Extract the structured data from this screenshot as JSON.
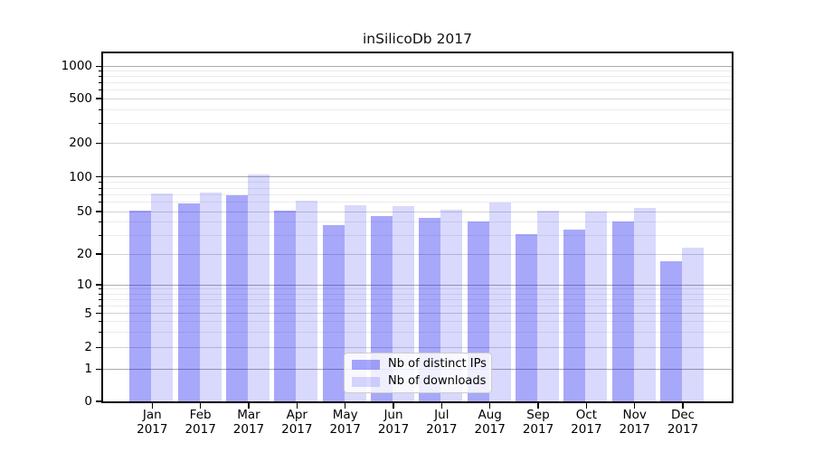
{
  "chart_data": {
    "type": "bar",
    "title": "inSilicoDb 2017",
    "categories": [
      "Jan",
      "Feb",
      "Mar",
      "Apr",
      "May",
      "Jun",
      "Jul",
      "Aug",
      "Sep",
      "Oct",
      "Nov",
      "Dec"
    ],
    "category_year": "2017",
    "series": [
      {
        "name": "Nb of distinct IPs",
        "color": "rgba(0,0,240,0.34)",
        "values": [
          51,
          59,
          69,
          51,
          37,
          45,
          44,
          40,
          31,
          34,
          40,
          17
        ]
      },
      {
        "name": "Nb of downloads",
        "color": "rgba(0,0,240,0.15)",
        "values": [
          72,
          73,
          105,
          62,
          57,
          56,
          52,
          60,
          51,
          50,
          54,
          23
        ]
      }
    ],
    "xlabel": "",
    "ylabel": "",
    "y_scale": "symlog",
    "y_major_ticks": [
      0,
      1,
      2,
      5,
      10,
      20,
      50,
      100,
      200,
      500,
      1000
    ],
    "y_decade_ticks": [
      1,
      10,
      100,
      1000
    ],
    "y_minor_ticks": [
      3,
      4,
      6,
      7,
      8,
      9,
      30,
      40,
      60,
      70,
      80,
      90,
      300,
      400,
      600,
      700,
      800,
      900
    ],
    "ylim": [
      0,
      1400
    ],
    "grid": "horizontal major + minor",
    "legend_position": "lower center"
  },
  "colors": {
    "major_grid": "#ababab",
    "sub_grid": "#d2d2d2",
    "minor_grid": "#ebebeb",
    "spine": "#000000",
    "legend_border": "#cccccc"
  }
}
